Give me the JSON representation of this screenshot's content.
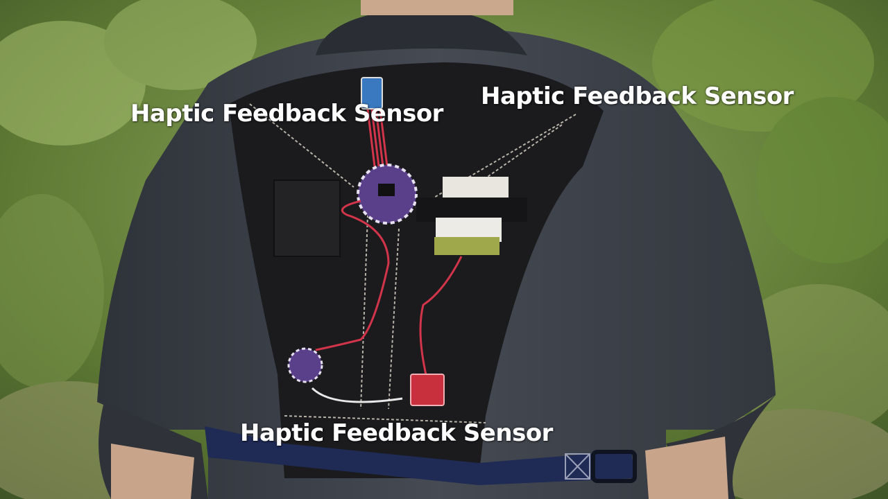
{
  "captions": {
    "left": "Haptic Feedback Sensor",
    "right": "Haptic Feedback Sensor",
    "bottom": "Haptic Feedback Sensor"
  },
  "colors": {
    "foliage": "#6f8a3c",
    "shirt": "#3a3f47",
    "vest": "#1c1b1e",
    "strap": "#1f2a55",
    "board": "#5a3f8a",
    "wire": "#d2344a",
    "caption": "#ffffff"
  }
}
